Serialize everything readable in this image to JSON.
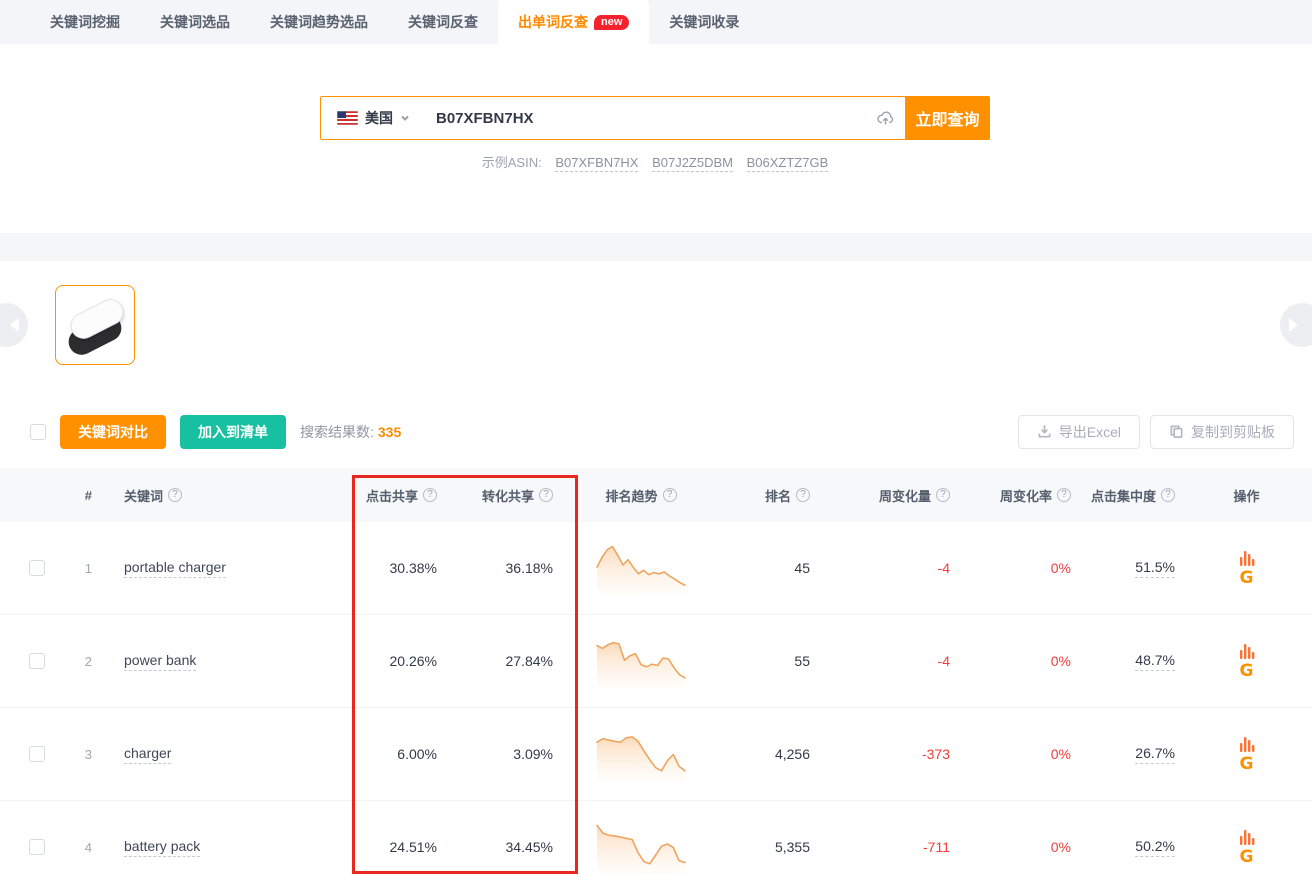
{
  "tabs": [
    {
      "label": "关键词挖掘",
      "active": false,
      "badge": ""
    },
    {
      "label": "关键词选品",
      "active": false,
      "badge": ""
    },
    {
      "label": "关键词趋势选品",
      "active": false,
      "badge": ""
    },
    {
      "label": "关键词反查",
      "active": false,
      "badge": ""
    },
    {
      "label": "出单词反查",
      "active": true,
      "badge": "new"
    },
    {
      "label": "关键词收录",
      "active": false,
      "badge": ""
    }
  ],
  "search": {
    "country": "美国",
    "asin_value": "B07XFBN7HX",
    "submit_label": "立即查询",
    "example_label": "示例ASIN:",
    "example_asins": [
      "B07XFBN7HX",
      "B07J2Z5DBM",
      "B06XZTZ7GB"
    ]
  },
  "toolbar": {
    "compare_label": "关键词对比",
    "add_list_label": "加入到清单",
    "result_label": "搜索结果数:",
    "result_count": "335",
    "export_label": "导出Excel",
    "copy_label": "复制到剪贴板"
  },
  "table": {
    "headers": {
      "index": "#",
      "keyword": "关键词",
      "click_share": "点击共享",
      "conv_share": "转化共享",
      "rank_trend": "排名趋势",
      "rank": "排名",
      "week_change": "周变化量",
      "week_rate": "周变化率",
      "click_concentration": "点击集中度",
      "action": "操作"
    },
    "rows": [
      {
        "index": "1",
        "keyword": "portable charger",
        "click_share": "30.38%",
        "conv_share": "36.18%",
        "rank": "45",
        "week_change": "-4",
        "week_rate": "0%",
        "concentration": "51.5%",
        "trend": [
          0.45,
          0.68,
          0.85,
          0.92,
          0.72,
          0.5,
          0.62,
          0.45,
          0.3,
          0.38,
          0.28,
          0.33,
          0.3,
          0.34,
          0.25,
          0.18,
          0.1,
          0.04
        ]
      },
      {
        "index": "2",
        "keyword": "power bank",
        "click_share": "20.26%",
        "conv_share": "27.84%",
        "rank": "55",
        "week_change": "-4",
        "week_rate": "0%",
        "concentration": "48.7%",
        "trend": [
          0.78,
          0.72,
          0.8,
          0.85,
          0.82,
          0.45,
          0.55,
          0.6,
          0.35,
          0.3,
          0.36,
          0.33,
          0.5,
          0.48,
          0.28,
          0.12,
          0.05
        ]
      },
      {
        "index": "3",
        "keyword": "charger",
        "click_share": "6.00%",
        "conv_share": "3.09%",
        "rank": "4,256",
        "week_change": "-373",
        "week_rate": "0%",
        "concentration": "26.7%",
        "trend": [
          0.7,
          0.78,
          0.75,
          0.72,
          0.7,
          0.8,
          0.82,
          0.72,
          0.5,
          0.3,
          0.12,
          0.05,
          0.28,
          0.42,
          0.15,
          0.05
        ]
      },
      {
        "index": "4",
        "keyword": "battery pack",
        "click_share": "24.51%",
        "conv_share": "34.45%",
        "rank": "5,355",
        "week_change": "-711",
        "week_rate": "0%",
        "concentration": "50.2%",
        "trend": [
          0.92,
          0.75,
          0.7,
          0.68,
          0.66,
          0.63,
          0.6,
          0.3,
          0.1,
          0.05,
          0.25,
          0.45,
          0.5,
          0.42,
          0.12,
          0.08
        ]
      }
    ]
  },
  "chart_data": {
    "type": "line",
    "note": "sparkline rank-trend series per keyword row, values normalized 0-1 (1 = best rank)",
    "series": [
      {
        "name": "portable charger",
        "values": [
          0.45,
          0.68,
          0.85,
          0.92,
          0.72,
          0.5,
          0.62,
          0.45,
          0.3,
          0.38,
          0.28,
          0.33,
          0.3,
          0.34,
          0.25,
          0.18,
          0.1,
          0.04
        ]
      },
      {
        "name": "power bank",
        "values": [
          0.78,
          0.72,
          0.8,
          0.85,
          0.82,
          0.45,
          0.55,
          0.6,
          0.35,
          0.3,
          0.36,
          0.33,
          0.5,
          0.48,
          0.28,
          0.12,
          0.05
        ]
      },
      {
        "name": "charger",
        "values": [
          0.7,
          0.78,
          0.75,
          0.72,
          0.7,
          0.8,
          0.82,
          0.72,
          0.5,
          0.3,
          0.12,
          0.05,
          0.28,
          0.42,
          0.15,
          0.05
        ]
      },
      {
        "name": "battery pack",
        "values": [
          0.92,
          0.75,
          0.7,
          0.68,
          0.66,
          0.63,
          0.6,
          0.3,
          0.1,
          0.05,
          0.25,
          0.45,
          0.5,
          0.42,
          0.12,
          0.08
        ]
      }
    ]
  },
  "colors": {
    "accent": "#ff9000",
    "teal": "#17c0a0",
    "negative": "#f23c3c",
    "annotation_red": "#e8281e",
    "spark_stroke": "#eda55f",
    "badge_red": "#f5222d"
  }
}
